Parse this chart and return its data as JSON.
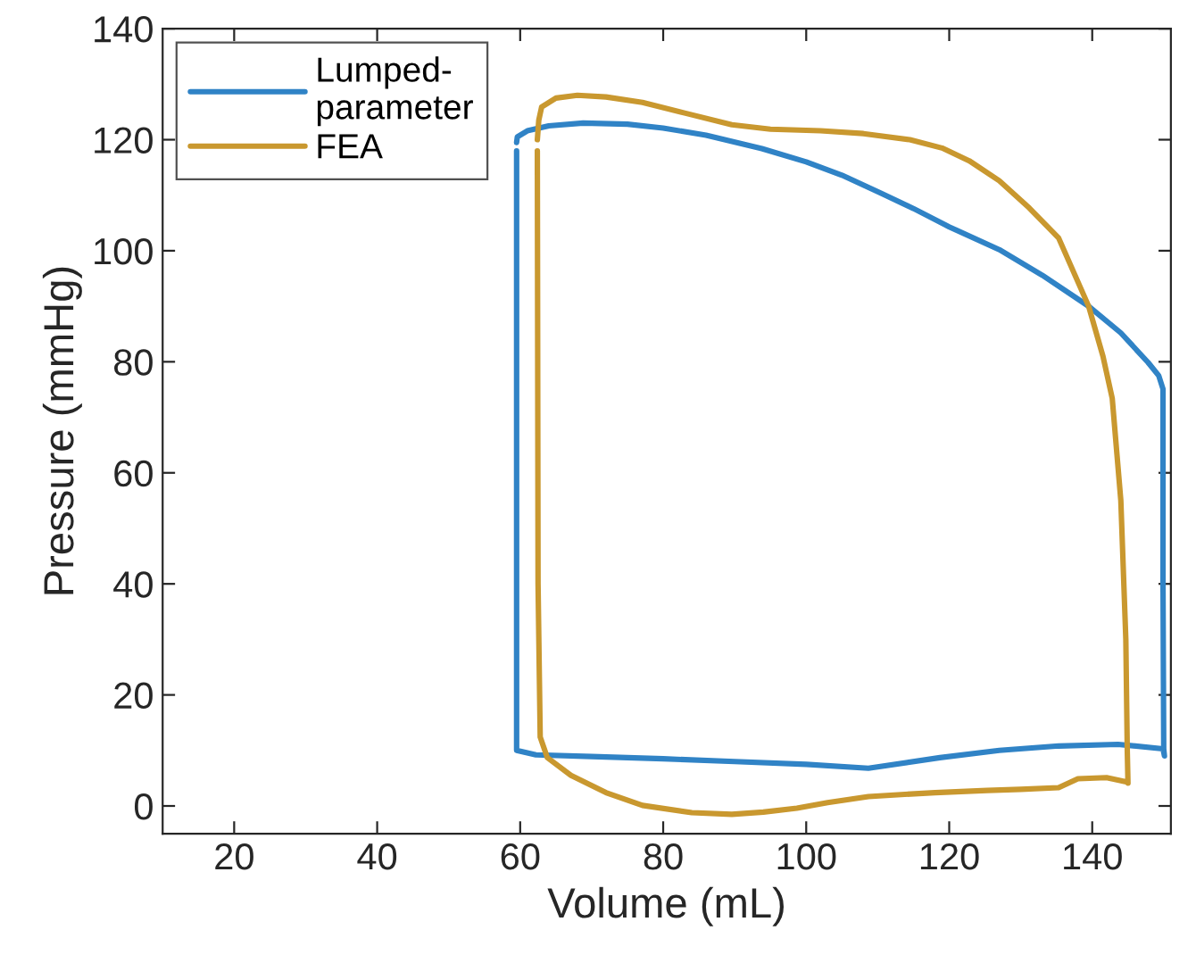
{
  "chart_data": {
    "type": "line",
    "xlabel": "Volume (mL)",
    "ylabel": "Pressure (mmHg)",
    "xlim": [
      10,
      151
    ],
    "ylim": [
      -5,
      140
    ],
    "xticks": [
      20,
      40,
      60,
      80,
      100,
      120,
      140
    ],
    "yticks": [
      0,
      20,
      40,
      60,
      80,
      100,
      120,
      140
    ],
    "grid": false,
    "legend": "top left",
    "marker": "none",
    "line_style": "solid",
    "series": [
      {
        "name": "Lumped-\nparameter",
        "color": "#3083c6",
        "x": [
          59.5,
          59.6,
          61,
          64,
          68.8,
          75,
          80,
          86,
          93.8,
          100,
          105,
          110.4,
          115,
          120,
          127,
          133,
          139.5,
          144,
          147.8,
          149.3,
          149.9,
          149.9,
          150,
          150.1,
          149.9,
          143.6,
          135.3,
          127,
          118.7,
          108.7,
          100,
          90,
          80,
          70,
          62.2,
          59.5,
          59.5
        ],
        "values": [
          119.5,
          120.5,
          121.6,
          122.5,
          123,
          122.8,
          122.1,
          120.8,
          118.4,
          116,
          113.6,
          110.4,
          107.6,
          104.3,
          100.2,
          95.6,
          90,
          85.2,
          79.9,
          77.5,
          75.1,
          40,
          10.3,
          9,
          10.3,
          11.1,
          10.8,
          10,
          8.7,
          6.8,
          7.5,
          8,
          8.5,
          8.9,
          9.2,
          10,
          118
        ]
      },
      {
        "name": "FEA",
        "color": "#c9982f",
        "x": [
          62.4,
          62.6,
          63,
          65,
          68,
          72,
          77.1,
          83,
          89.6,
          95,
          102,
          108,
          114.5,
          119,
          122.8,
          127,
          131.2,
          135.3,
          139.5,
          141.5,
          142.8,
          144,
          144.7,
          144.9,
          145,
          144.9,
          142,
          138,
          135.3,
          130,
          125.3,
          118,
          108.7,
          103,
          98.7,
          94,
          89.6,
          84,
          77.1,
          72,
          67.1,
          63.8,
          62.8,
          62.5,
          62.4
        ],
        "values": [
          120,
          123.5,
          125.9,
          127.5,
          128,
          127.7,
          126.7,
          124.8,
          122.7,
          121.9,
          121.6,
          121.1,
          120,
          118.5,
          116.2,
          112.6,
          107.7,
          102.3,
          90,
          81,
          73.4,
          55,
          30,
          10,
          4.1,
          4.3,
          5.1,
          4.9,
          3.3,
          3,
          2.8,
          2.4,
          1.7,
          0.6,
          -0.4,
          -1.1,
          -1.5,
          -1.2,
          0.1,
          2.4,
          5.5,
          8.7,
          12.4,
          40,
          118
        ]
      }
    ]
  }
}
